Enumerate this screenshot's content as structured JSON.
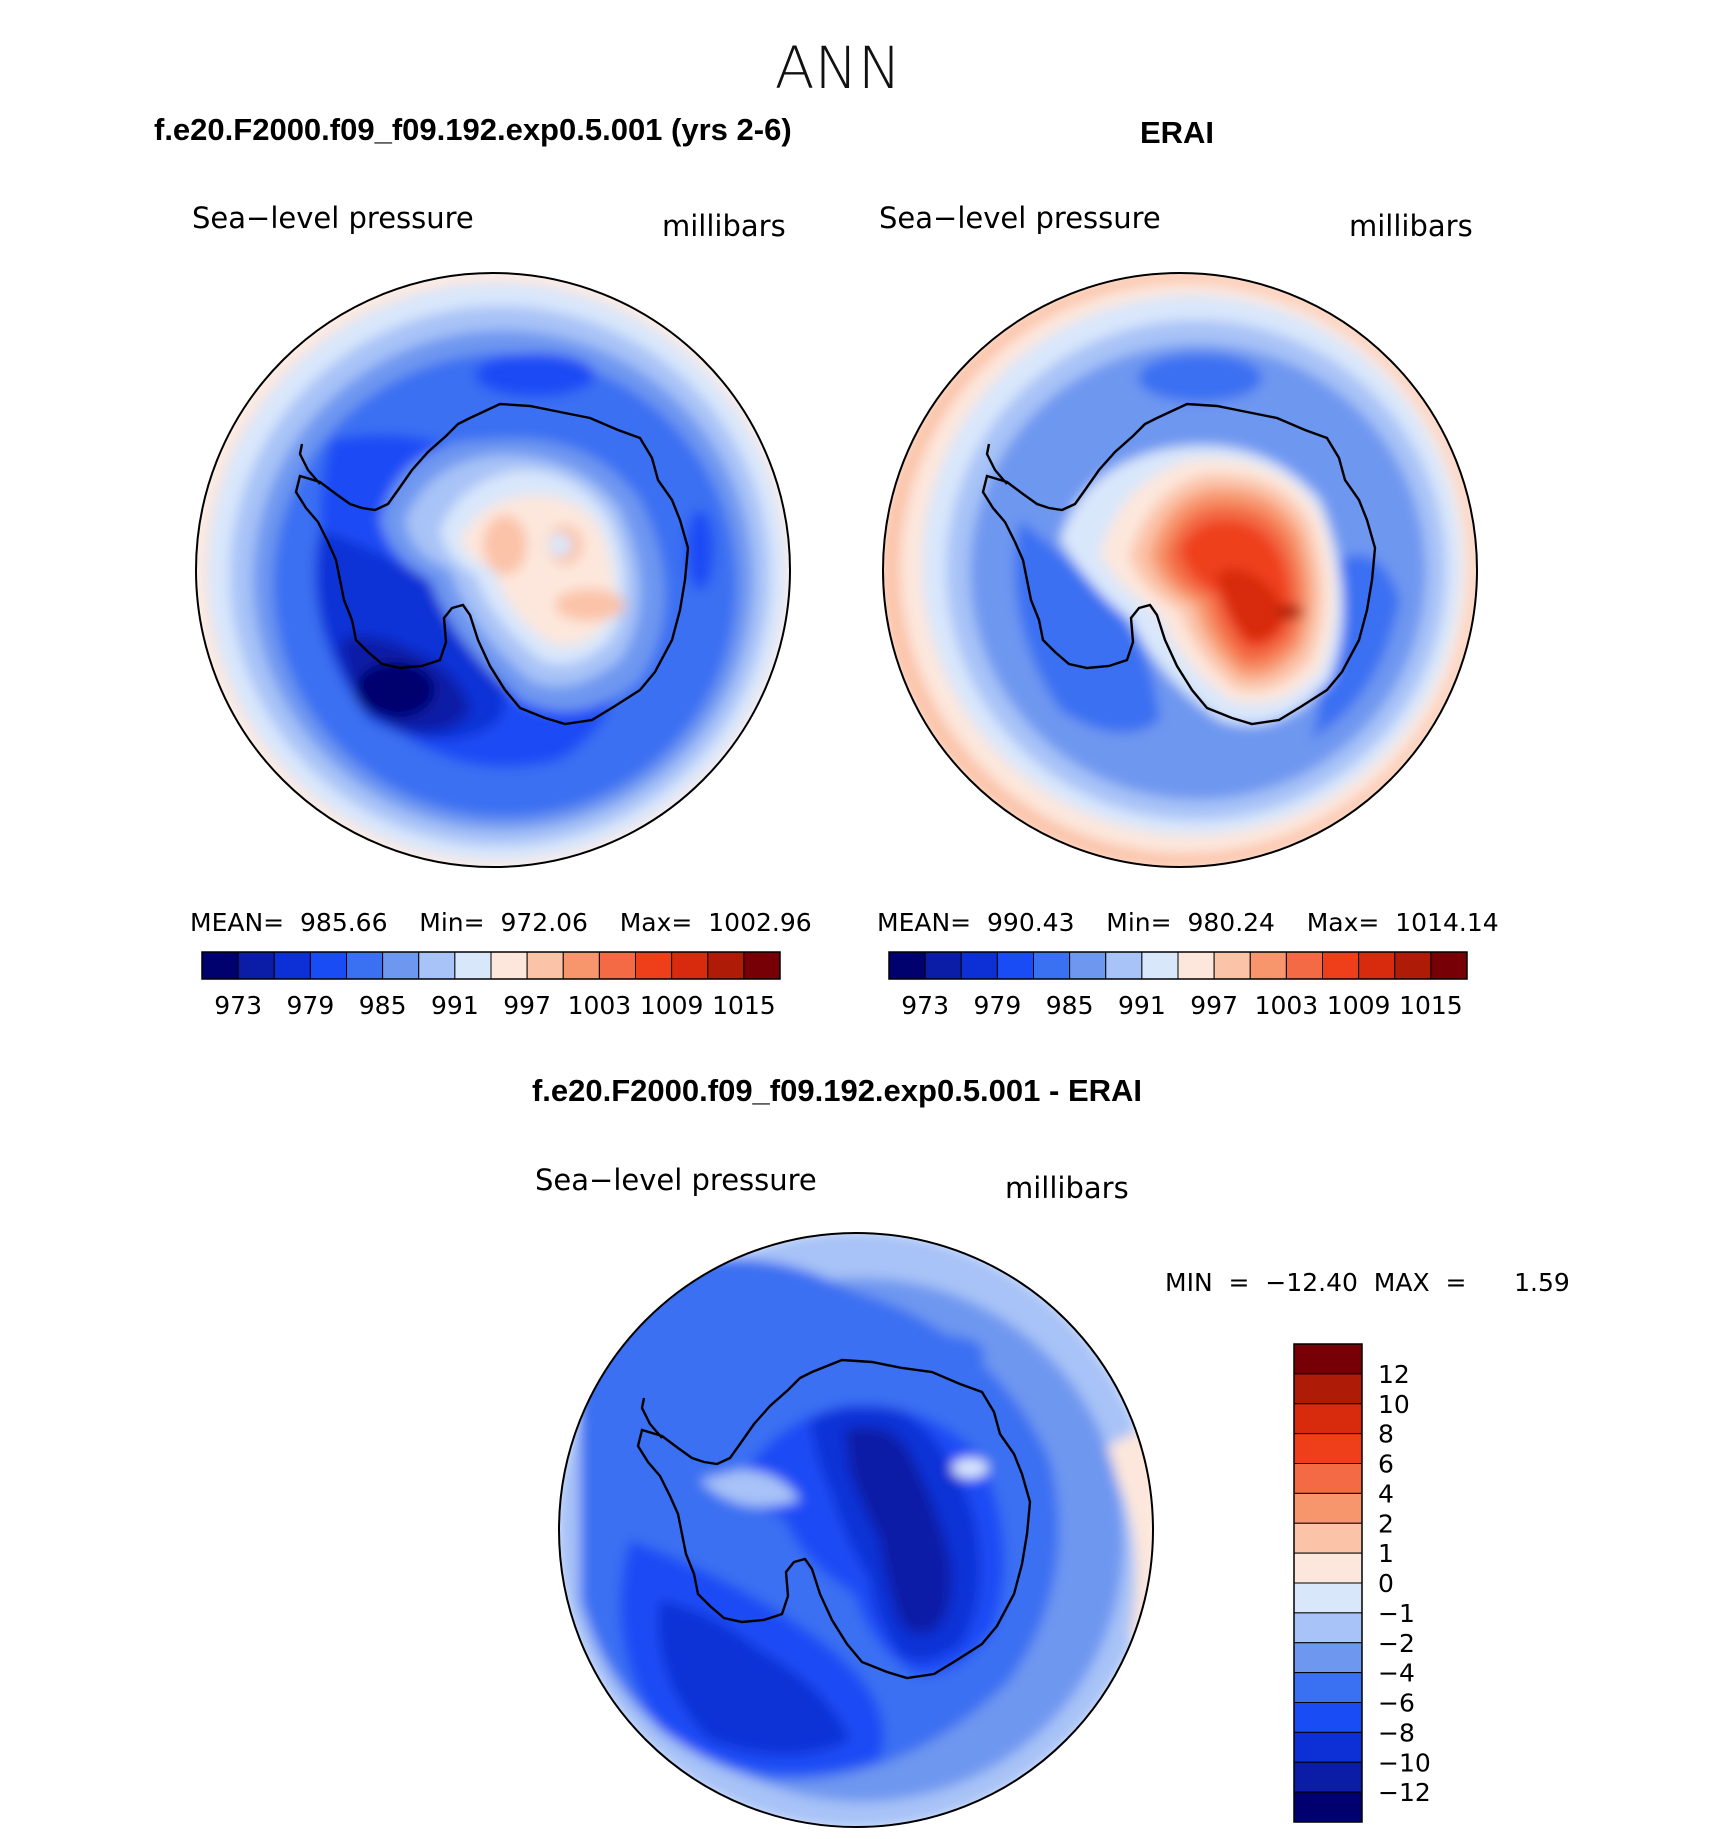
{
  "figure": {
    "season_title": "ANN",
    "panels": {
      "model": {
        "title": "f.e20.F2000.f09_f09.192.exp0.5.001 (yrs 2-6)",
        "left_label": "Sea−level pressure",
        "right_label": "millibars",
        "stats_text": "MEAN=  985.66    Min=  972.06    Max=  1002.96"
      },
      "obs": {
        "title": "ERAI",
        "left_label": "Sea−level pressure",
        "right_label": "millibars",
        "stats_text": "MEAN=  990.43    Min=  980.24    Max=  1014.14"
      },
      "diff": {
        "title": "f.e20.F2000.f09_f09.192.exp0.5.001 - ERAI",
        "left_label": "Sea−level pressure",
        "right_label": "millibars",
        "stats_text": "MIN  =  −12.40  MAX  =      1.59"
      }
    }
  },
  "chart_data": [
    {
      "type": "heatmap",
      "projection": "south-polar-stereographic",
      "title": "f.e20.F2000.f09_f09.192.exp0.5.001 (yrs 2-6)",
      "variable": "Sea-level pressure",
      "units": "millibars",
      "mean": 985.66,
      "min": 972.06,
      "max": 1002.96,
      "contour_levels": [
        973,
        976,
        979,
        982,
        985,
        988,
        991,
        994,
        997,
        1000,
        1003,
        1006,
        1009,
        1012,
        1015
      ],
      "colorbar_labels": [
        "973",
        "979",
        "985",
        "991",
        "997",
        "1003",
        "1009",
        "1015"
      ]
    },
    {
      "type": "heatmap",
      "projection": "south-polar-stereographic",
      "title": "ERAI",
      "variable": "Sea-level pressure",
      "units": "millibars",
      "mean": 990.43,
      "min": 980.24,
      "max": 1014.14,
      "contour_levels": [
        973,
        976,
        979,
        982,
        985,
        988,
        991,
        994,
        997,
        1000,
        1003,
        1006,
        1009,
        1012,
        1015
      ],
      "colorbar_labels": [
        "973",
        "979",
        "985",
        "991",
        "997",
        "1003",
        "1009",
        "1015"
      ]
    },
    {
      "type": "heatmap",
      "projection": "south-polar-stereographic",
      "title": "f.e20.F2000.f09_f09.192.exp0.5.001 - ERAI",
      "variable": "Sea-level pressure",
      "units": "millibars",
      "min": -12.4,
      "max": 1.59,
      "contour_levels": [
        -12,
        -10,
        -8,
        -6,
        -4,
        -2,
        -1,
        0,
        1,
        2,
        4,
        6,
        8,
        10,
        12
      ],
      "colorbar_labels": [
        "12",
        "10",
        "8",
        "6",
        "4",
        "2",
        "1",
        "0",
        "−1",
        "−2",
        "−4",
        "−6",
        "−8",
        "−10",
        "−12"
      ]
    }
  ],
  "colors": {
    "palette16": [
      "#00006e",
      "#0b1ca6",
      "#0c30d6",
      "#1a4cf5",
      "#3a70f2",
      "#6e97f0",
      "#a8c3f7",
      "#d9e7fb",
      "#fde7dc",
      "#fbc3a8",
      "#f7966d",
      "#f36a44",
      "#ef3f1a",
      "#d82a0c",
      "#ae1b06",
      "#760006"
    ],
    "coast": "#000000"
  }
}
